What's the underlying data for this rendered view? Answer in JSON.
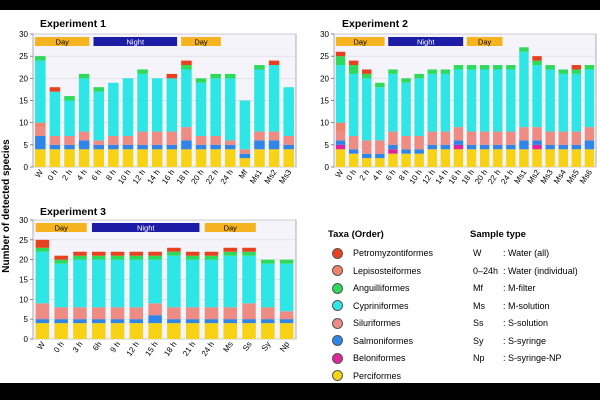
{
  "ylabel": "Number of detected species",
  "taxa": [
    {
      "name": "Petromyzontiformes",
      "color": "#e8411f"
    },
    {
      "name": "Lepisosteiformes",
      "color": "#f2836b"
    },
    {
      "name": "Anguilliformes",
      "color": "#2fd95a"
    },
    {
      "name": "Cypriniformes",
      "color": "#2ee6e6"
    },
    {
      "name": "Siluriformes",
      "color": "#ee8c84"
    },
    {
      "name": "Salmoniformes",
      "color": "#2f86e8"
    },
    {
      "name": "Beloniformes",
      "color": "#e0249a"
    },
    {
      "name": "Perciformes",
      "color": "#f7d215"
    }
  ],
  "legend": {
    "taxa_title": "Taxa (Order)",
    "sample_title": "Sample type",
    "sample_types": [
      {
        "code": "W",
        "desc": ": Water (all)"
      },
      {
        "code": "0–24h",
        "desc": ": Water (individual)"
      },
      {
        "code": "Mf",
        "desc": ": M-filter"
      },
      {
        "code": "Ms",
        "desc": ": M-solution"
      },
      {
        "code": "Ss",
        "desc": ": S-solution"
      },
      {
        "code": "Sy",
        "desc": ": S-syringe"
      },
      {
        "code": "Np",
        "desc": ": S-syringe-NP"
      }
    ]
  },
  "chart_data": [
    {
      "type": "bar",
      "stacked": true,
      "title": "Experiment 1",
      "ylim": [
        0,
        30
      ],
      "yticks": [
        0,
        5,
        10,
        15,
        20,
        25,
        30
      ],
      "grid": true,
      "period_bar": [
        {
          "label": "Day",
          "span": [
            0,
            4
          ],
          "color": "#f5b41f"
        },
        {
          "label": "Night",
          "span": [
            4,
            10
          ],
          "color": "#1c1ca6"
        },
        {
          "label": "Day",
          "span": [
            10,
            13
          ],
          "color": "#f5b41f"
        }
      ],
      "categories": [
        "W",
        "0 h",
        "2 h",
        "4 h",
        "6 h",
        "8 h",
        "10 h",
        "12 h",
        "14 h",
        "16 h",
        "18 h",
        "20 h",
        "22 h",
        "24 h",
        "Mf",
        "Ms1",
        "Ms2",
        "Ms3"
      ],
      "series": [
        {
          "name": "Perciformes",
          "values": [
            4,
            4,
            4,
            4,
            4,
            4,
            4,
            4,
            4,
            4,
            4,
            4,
            4,
            4,
            2,
            4,
            4,
            4
          ]
        },
        {
          "name": "Beloniformes",
          "values": [
            0,
            0,
            0,
            0,
            0,
            0,
            0,
            0,
            0,
            0,
            0,
            0,
            0,
            0,
            0,
            0,
            0,
            0
          ]
        },
        {
          "name": "Salmoniformes",
          "values": [
            3,
            1,
            1,
            2,
            1,
            1,
            1,
            1,
            1,
            1,
            2,
            1,
            1,
            1,
            1,
            2,
            2,
            1
          ]
        },
        {
          "name": "Siluriformes",
          "values": [
            2,
            2,
            2,
            2,
            1,
            2,
            2,
            3,
            3,
            3,
            3,
            2,
            2,
            1,
            1,
            2,
            2,
            2
          ]
        },
        {
          "name": "Lepisosteiformes",
          "values": [
            1,
            0,
            0,
            0,
            0,
            0,
            0,
            0,
            0,
            0,
            0,
            0,
            0,
            0,
            0,
            0,
            0,
            0
          ]
        },
        {
          "name": "Cypriniformes",
          "values": [
            14,
            10,
            8,
            12,
            11,
            12,
            13,
            13,
            12,
            12,
            13,
            12,
            13,
            14,
            11,
            14,
            15,
            11
          ]
        },
        {
          "name": "Anguilliformes",
          "values": [
            1,
            0,
            1,
            1,
            1,
            0,
            0,
            1,
            0,
            0,
            1,
            1,
            1,
            1,
            0,
            1,
            0,
            0
          ]
        },
        {
          "name": "Petromyzontiformes",
          "values": [
            0,
            1,
            0,
            0,
            0,
            0,
            0,
            0,
            0,
            1,
            1,
            0,
            0,
            0,
            0,
            0,
            1,
            0
          ]
        }
      ]
    },
    {
      "type": "bar",
      "stacked": true,
      "title": "Experiment 2",
      "ylim": [
        0,
        30
      ],
      "yticks": [
        0,
        5,
        10,
        15,
        20,
        25,
        30
      ],
      "grid": true,
      "period_bar": [
        {
          "label": "Day",
          "span": [
            0,
            4
          ],
          "color": "#f5b41f"
        },
        {
          "label": "Night",
          "span": [
            4,
            10
          ],
          "color": "#1c1ca6"
        },
        {
          "label": "Day",
          "span": [
            10,
            13
          ],
          "color": "#f5b41f"
        }
      ],
      "categories": [
        "W",
        "0 h",
        "2 h",
        "4 h",
        "6 h",
        "8 h",
        "10 h",
        "12 h",
        "14 h",
        "16 h",
        "18 h",
        "20 h",
        "22 h",
        "24 h",
        "Ms1",
        "Ms2",
        "Ms3",
        "Ms4",
        "Ms5",
        "Ms6"
      ],
      "series": [
        {
          "name": "Perciformes",
          "values": [
            4,
            3,
            2,
            2,
            3,
            3,
            3,
            4,
            4,
            4,
            4,
            4,
            4,
            4,
            4,
            4,
            4,
            4,
            4,
            4
          ]
        },
        {
          "name": "Beloniformes",
          "values": [
            1,
            0,
            0,
            0,
            1,
            0,
            0,
            0,
            0,
            1,
            0,
            0,
            0,
            0,
            0,
            1,
            0,
            0,
            0,
            0
          ]
        },
        {
          "name": "Salmoniformes",
          "values": [
            1,
            1,
            1,
            1,
            1,
            1,
            1,
            1,
            1,
            1,
            1,
            1,
            1,
            1,
            2,
            1,
            1,
            1,
            1,
            2
          ]
        },
        {
          "name": "Siluriformes",
          "values": [
            2,
            3,
            3,
            3,
            3,
            3,
            3,
            3,
            3,
            3,
            3,
            3,
            3,
            3,
            3,
            3,
            3,
            3,
            3,
            3
          ]
        },
        {
          "name": "Lepisosteiformes",
          "values": [
            2,
            0,
            0,
            0,
            0,
            0,
            0,
            0,
            0,
            0,
            0,
            0,
            0,
            0,
            0,
            0,
            0,
            0,
            0,
            0
          ]
        },
        {
          "name": "Cypriniformes",
          "values": [
            13,
            14,
            14,
            12,
            13,
            12,
            13,
            13,
            13,
            13,
            14,
            14,
            14,
            14,
            17,
            14,
            14,
            13,
            13,
            13
          ]
        },
        {
          "name": "Anguilliformes",
          "values": [
            2,
            2,
            1,
            1,
            1,
            1,
            1,
            1,
            1,
            1,
            1,
            1,
            1,
            1,
            1,
            1,
            1,
            1,
            1,
            1
          ]
        },
        {
          "name": "Petromyzontiformes",
          "values": [
            1,
            1,
            1,
            0,
            0,
            0,
            0,
            0,
            0,
            0,
            0,
            0,
            0,
            0,
            0,
            1,
            0,
            0,
            1,
            0
          ]
        }
      ]
    },
    {
      "type": "bar",
      "stacked": true,
      "title": "Experiment 3",
      "ylim": [
        0,
        30
      ],
      "yticks": [
        0,
        5,
        10,
        15,
        20,
        25,
        30
      ],
      "grid": true,
      "period_bar": [
        {
          "label": "Day",
          "span": [
            0,
            3
          ],
          "color": "#f5b41f"
        },
        {
          "label": "Night",
          "span": [
            3,
            9
          ],
          "color": "#1c1ca6"
        },
        {
          "label": "Day",
          "span": [
            9,
            12
          ],
          "color": "#f5b41f"
        }
      ],
      "categories": [
        "W",
        "0 h",
        "3 h",
        "6h",
        "9 h",
        "12 h",
        "15 h",
        "18 h",
        "21 h",
        "24 h",
        "Ms",
        "Ss",
        "Sy",
        "Np"
      ],
      "series": [
        {
          "name": "Perciformes",
          "values": [
            4,
            4,
            4,
            4,
            4,
            4,
            4,
            4,
            4,
            4,
            4,
            4,
            4,
            4
          ]
        },
        {
          "name": "Beloniformes",
          "values": [
            0,
            0,
            0,
            0,
            0,
            0,
            0,
            0,
            0,
            0,
            0,
            0,
            0,
            0
          ]
        },
        {
          "name": "Salmoniformes",
          "values": [
            1,
            1,
            1,
            1,
            1,
            1,
            2,
            1,
            1,
            1,
            1,
            1,
            1,
            1
          ]
        },
        {
          "name": "Siluriformes",
          "values": [
            4,
            3,
            3,
            3,
            3,
            3,
            3,
            3,
            3,
            3,
            3,
            4,
            3,
            2
          ]
        },
        {
          "name": "Lepisosteiformes",
          "values": [
            0,
            0,
            0,
            0,
            0,
            0,
            0,
            0,
            0,
            0,
            0,
            0,
            0,
            0
          ]
        },
        {
          "name": "Cypriniformes",
          "values": [
            13,
            11,
            12,
            12,
            12,
            12,
            11,
            13,
            12,
            12,
            13,
            12,
            11,
            12
          ]
        },
        {
          "name": "Anguilliformes",
          "values": [
            1,
            1,
            1,
            1,
            1,
            1,
            1,
            1,
            1,
            1,
            1,
            1,
            1,
            1
          ]
        },
        {
          "name": "Petromyzontiformes",
          "values": [
            2,
            1,
            1,
            1,
            1,
            1,
            1,
            1,
            1,
            1,
            1,
            1,
            0,
            0
          ]
        }
      ]
    }
  ]
}
